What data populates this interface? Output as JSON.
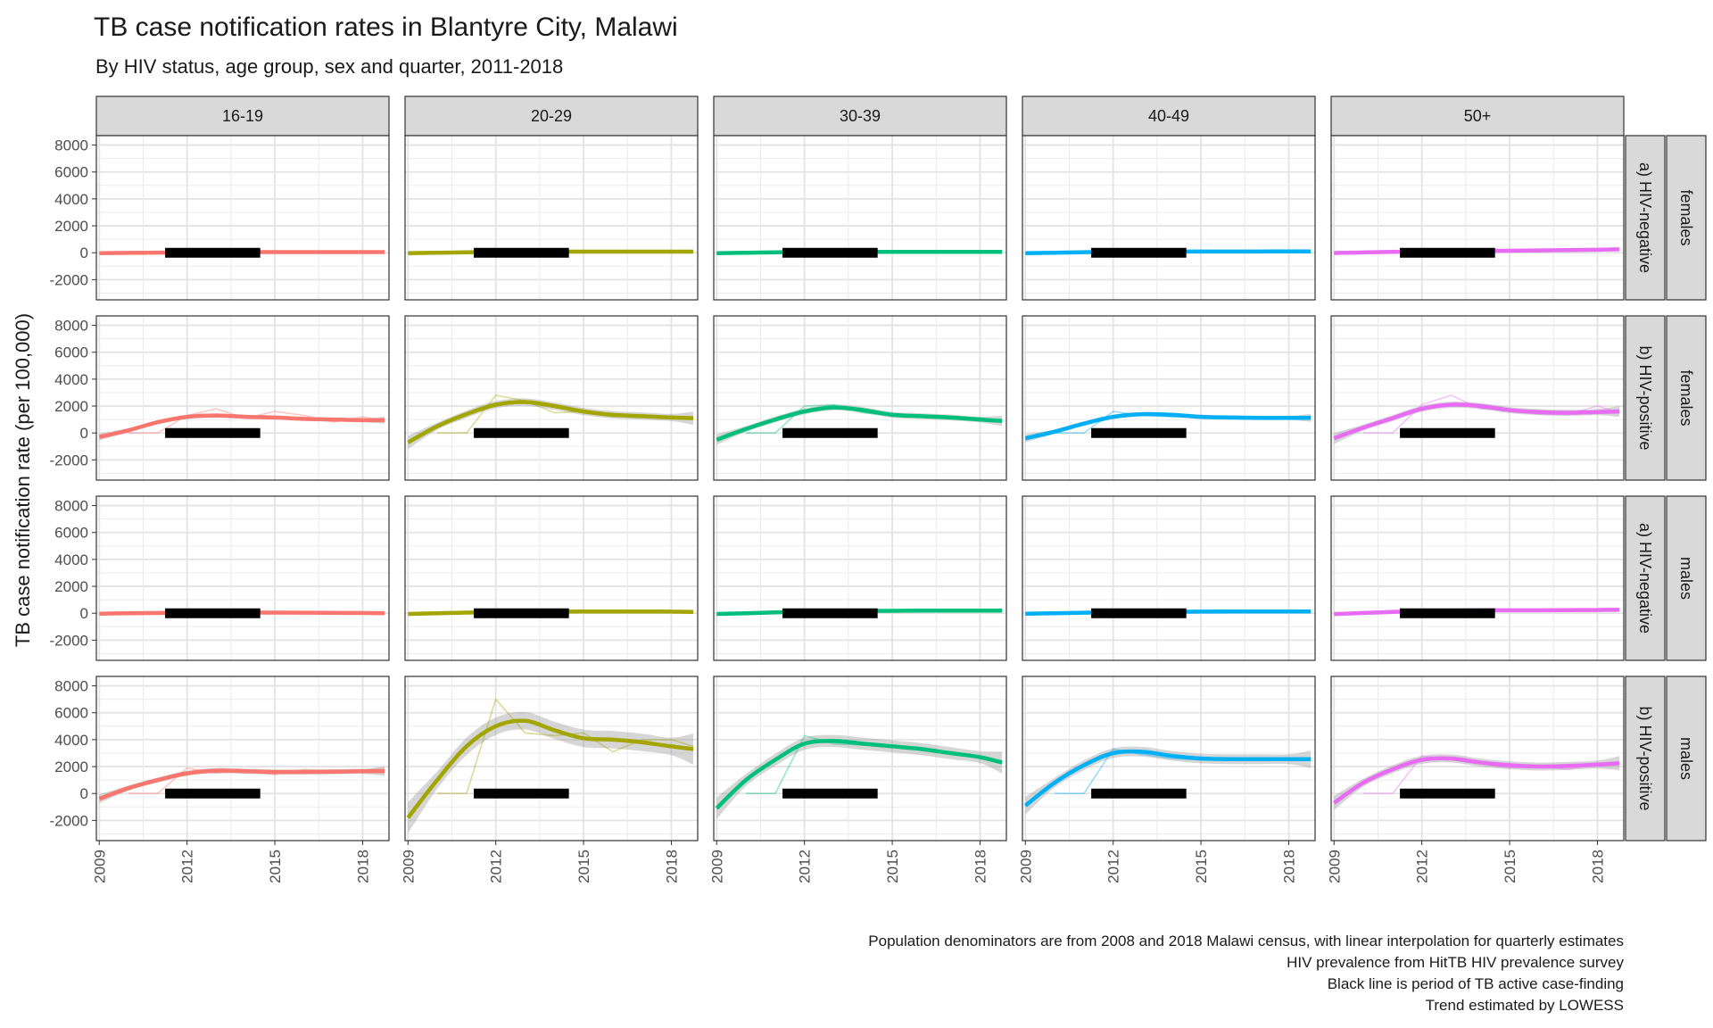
{
  "chart_data": {
    "type": "line",
    "title": "TB case notification rates in Blantyre City, Malawi",
    "subtitle": "By HIV status, age group, sex and quarter, 2011-2018",
    "ylabel": "TB case notification rate (per 100,000)",
    "xlabel": "",
    "xlim": [
      2008.9,
      2018.9
    ],
    "ylim": [
      -3500,
      8700
    ],
    "x_ticks": [
      2009,
      2012,
      2015,
      2018
    ],
    "y_ticks": [
      -2000,
      0,
      2000,
      4000,
      6000,
      8000
    ],
    "grid": true,
    "facet_columns": [
      "16-19",
      "20-29",
      "30-39",
      "40-49",
      "50+"
    ],
    "facet_rows": [
      {
        "hiv": "a) HIV-negative",
        "sex": "females"
      },
      {
        "hiv": "b) HIV-positive",
        "sex": "females"
      },
      {
        "hiv": "a) HIV-negative",
        "sex": "males"
      },
      {
        "hiv": "b) HIV-positive",
        "sex": "males"
      }
    ],
    "series_colors": [
      "#F8766D",
      "#A3A500",
      "#00BF7D",
      "#00B0F6",
      "#E76BF3"
    ],
    "acf_period": [
      2011.25,
      2014.5
    ],
    "trend_points_x": [
      2009,
      2010,
      2011,
      2012,
      2013,
      2014,
      2015,
      2016,
      2017,
      2018,
      2018.75
    ],
    "trend": [
      [
        [
          -30,
          -10,
          10,
          30,
          40,
          45,
          50,
          50,
          50,
          50,
          50
        ],
        [
          -40,
          0,
          30,
          60,
          80,
          80,
          80,
          80,
          80,
          80,
          80
        ],
        [
          -40,
          0,
          30,
          60,
          70,
          70,
          70,
          70,
          70,
          70,
          70
        ],
        [
          -40,
          0,
          40,
          70,
          80,
          90,
          90,
          90,
          90,
          100,
          100
        ],
        [
          -20,
          20,
          60,
          100,
          130,
          140,
          150,
          170,
          190,
          220,
          250
        ]
      ],
      [
        [
          -300,
          200,
          800,
          1200,
          1300,
          1200,
          1150,
          1050,
          1000,
          950,
          950
        ],
        [
          -700,
          500,
          1400,
          2100,
          2300,
          2000,
          1600,
          1350,
          1250,
          1150,
          1100
        ],
        [
          -500,
          300,
          1000,
          1600,
          1900,
          1700,
          1350,
          1250,
          1150,
          1000,
          900
        ],
        [
          -400,
          100,
          700,
          1200,
          1400,
          1350,
          1200,
          1150,
          1120,
          1120,
          1120
        ],
        [
          -400,
          400,
          1100,
          1800,
          2100,
          2000,
          1700,
          1550,
          1500,
          1550,
          1600
        ]
      ],
      [
        [
          -30,
          0,
          20,
          40,
          50,
          50,
          50,
          40,
          30,
          20,
          10
        ],
        [
          -50,
          0,
          50,
          80,
          100,
          120,
          130,
          130,
          130,
          120,
          100
        ],
        [
          -50,
          0,
          60,
          120,
          150,
          170,
          180,
          190,
          200,
          200,
          200
        ],
        [
          -40,
          0,
          40,
          80,
          100,
          110,
          120,
          130,
          130,
          130,
          130
        ],
        [
          -60,
          20,
          100,
          150,
          200,
          220,
          220,
          220,
          230,
          240,
          250
        ]
      ],
      [
        [
          -400,
          400,
          1000,
          1500,
          1700,
          1650,
          1600,
          1600,
          1620,
          1650,
          1650
        ],
        [
          -1800,
          1000,
          3500,
          5000,
          5400,
          4700,
          4100,
          4000,
          3800,
          3500,
          3300
        ],
        [
          -1100,
          1000,
          2500,
          3700,
          3900,
          3700,
          3500,
          3300,
          3000,
          2700,
          2300
        ],
        [
          -900,
          800,
          2100,
          3000,
          3100,
          2800,
          2600,
          2550,
          2550,
          2550,
          2550
        ],
        [
          -700,
          800,
          1800,
          2500,
          2600,
          2300,
          2100,
          2000,
          2050,
          2150,
          2250
        ]
      ]
    ],
    "raw": [
      [
        [
          null,
          0,
          0,
          20,
          40,
          60,
          50,
          50,
          40,
          60,
          50
        ],
        [
          null,
          0,
          0,
          80,
          60,
          90,
          70,
          90,
          80,
          70,
          90
        ],
        [
          null,
          0,
          0,
          60,
          80,
          60,
          70,
          80,
          60,
          70,
          70
        ],
        [
          null,
          0,
          0,
          80,
          70,
          100,
          80,
          90,
          100,
          90,
          110
        ],
        [
          null,
          0,
          0,
          120,
          100,
          150,
          130,
          160,
          190,
          210,
          260
        ]
      ],
      [
        [
          null,
          0,
          0,
          1300,
          1800,
          1100,
          1600,
          1300,
          800,
          1200,
          900
        ],
        [
          null,
          0,
          0,
          2800,
          2400,
          1500,
          1600,
          1200,
          1300,
          1150,
          1000
        ],
        [
          null,
          0,
          0,
          2000,
          2100,
          1500,
          1300,
          1200,
          1200,
          900,
          900
        ],
        [
          null,
          0,
          0,
          1600,
          1300,
          1200,
          1200,
          1100,
          1100,
          1200,
          1100
        ],
        [
          null,
          0,
          0,
          2100,
          2800,
          1800,
          1700,
          1400,
          1400,
          2000,
          1500
        ]
      ],
      [
        [
          null,
          0,
          0,
          40,
          50,
          50,
          60,
          40,
          30,
          20,
          10
        ],
        [
          null,
          0,
          0,
          100,
          90,
          130,
          120,
          140,
          120,
          130,
          100
        ],
        [
          null,
          0,
          0,
          140,
          150,
          160,
          180,
          190,
          210,
          200,
          200
        ],
        [
          null,
          0,
          0,
          90,
          100,
          110,
          130,
          120,
          140,
          130,
          130
        ],
        [
          null,
          0,
          0,
          170,
          210,
          210,
          230,
          220,
          240,
          230,
          260
        ]
      ],
      [
        [
          null,
          0,
          0,
          1900,
          1500,
          1700,
          1400,
          1800,
          1600,
          1700,
          1900
        ],
        [
          null,
          0,
          0,
          7000,
          4500,
          4300,
          4500,
          3100,
          4000,
          4000,
          3500
        ],
        [
          null,
          0,
          0,
          4300,
          3700,
          3600,
          3600,
          3200,
          3000,
          2800,
          2200
        ],
        [
          null,
          0,
          0,
          3300,
          2900,
          2600,
          2500,
          2500,
          2600,
          2600,
          2500
        ],
        [
          null,
          0,
          0,
          2800,
          2500,
          2200,
          1900,
          2000,
          1800,
          2200,
          2200
        ]
      ]
    ]
  },
  "caption": [
    "Population denominators are from 2008 and 2018 Malawi census, with linear interpolation for quarterly estimates",
    "HIV prevalence from HitTB HIV prevalence survey",
    "Black line is period of TB active case-finding",
    "Trend estimated by LOWESS"
  ]
}
